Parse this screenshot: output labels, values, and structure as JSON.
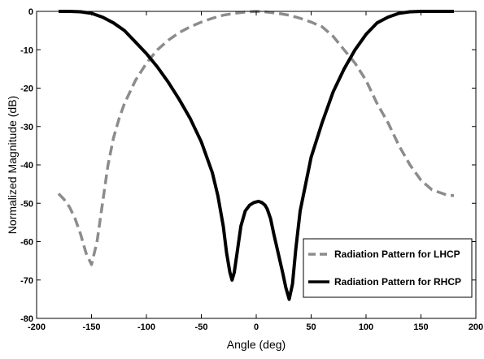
{
  "chart_data": {
    "type": "line",
    "title": "",
    "xlabel": "Angle (deg)",
    "ylabel": "Normalized Magnitude (dB)",
    "xlim": [
      -200,
      200
    ],
    "ylim": [
      -80,
      0
    ],
    "xticks": [
      -200,
      -150,
      -100,
      -50,
      0,
      50,
      100,
      150,
      200
    ],
    "yticks": [
      0,
      -10,
      -20,
      -30,
      -40,
      -50,
      -60,
      -70,
      -80
    ],
    "xtick_labels": [
      "-200",
      "-150",
      "-100",
      "-50",
      "0",
      "50",
      "100",
      "150",
      "200"
    ],
    "ytick_labels": [
      "0",
      "-10",
      "-20",
      "-30",
      "-40",
      "-50",
      "-60",
      "-70",
      "-80"
    ],
    "grid": false,
    "legend_position": "bottom-right",
    "series": [
      {
        "name": "Radiation Pattern for LHCP",
        "color": "#8c8c8c",
        "style": "dashed",
        "x": [
          -180,
          -175,
          -170,
          -165,
          -160,
          -155,
          -150,
          -145,
          -140,
          -135,
          -130,
          -125,
          -120,
          -110,
          -100,
          -90,
          -80,
          -70,
          -60,
          -50,
          -40,
          -30,
          -20,
          -10,
          0,
          10,
          20,
          30,
          40,
          50,
          60,
          70,
          80,
          90,
          100,
          110,
          120,
          130,
          140,
          150,
          160,
          170,
          175,
          180
        ],
        "y": [
          -47.5,
          -49,
          -51,
          -54,
          -58,
          -63,
          -66,
          -60,
          -50,
          -40,
          -33,
          -28,
          -24,
          -18,
          -13.5,
          -10,
          -7.5,
          -5.5,
          -4,
          -2.8,
          -1.8,
          -1,
          -0.5,
          -0.2,
          0,
          -0.2,
          -0.5,
          -1,
          -1.8,
          -2.8,
          -4,
          -6.5,
          -10,
          -13.5,
          -18,
          -24,
          -29,
          -35,
          -40,
          -44,
          -46.5,
          -47.5,
          -48,
          -48
        ]
      },
      {
        "name": "Radiation Pattern for RHCP",
        "color": "#000000",
        "style": "solid",
        "x": [
          -180,
          -170,
          -160,
          -150,
          -140,
          -130,
          -120,
          -110,
          -100,
          -90,
          -80,
          -70,
          -60,
          -50,
          -40,
          -35,
          -30,
          -27,
          -24,
          -22,
          -20,
          -17,
          -14,
          -10,
          -6,
          -2,
          2,
          5,
          8,
          10,
          13,
          16,
          20,
          24,
          27,
          30,
          33,
          36,
          40,
          50,
          60,
          70,
          80,
          90,
          100,
          110,
          120,
          130,
          140,
          150,
          160,
          170,
          180
        ],
        "y": [
          0,
          0,
          -0.1,
          -0.5,
          -1.5,
          -3,
          -5,
          -8,
          -11,
          -14.5,
          -18.5,
          -23,
          -28,
          -34,
          -42,
          -48,
          -56,
          -63,
          -68,
          -70,
          -68,
          -62,
          -56,
          -52,
          -50.5,
          -49.8,
          -49.5,
          -49.8,
          -50.5,
          -51.5,
          -54,
          -58,
          -63,
          -68,
          -72,
          -75,
          -71,
          -62,
          -52,
          -38,
          -29,
          -21,
          -15,
          -10,
          -6,
          -3,
          -1.5,
          -0.5,
          -0.1,
          0,
          0,
          0,
          0
        ]
      }
    ]
  }
}
